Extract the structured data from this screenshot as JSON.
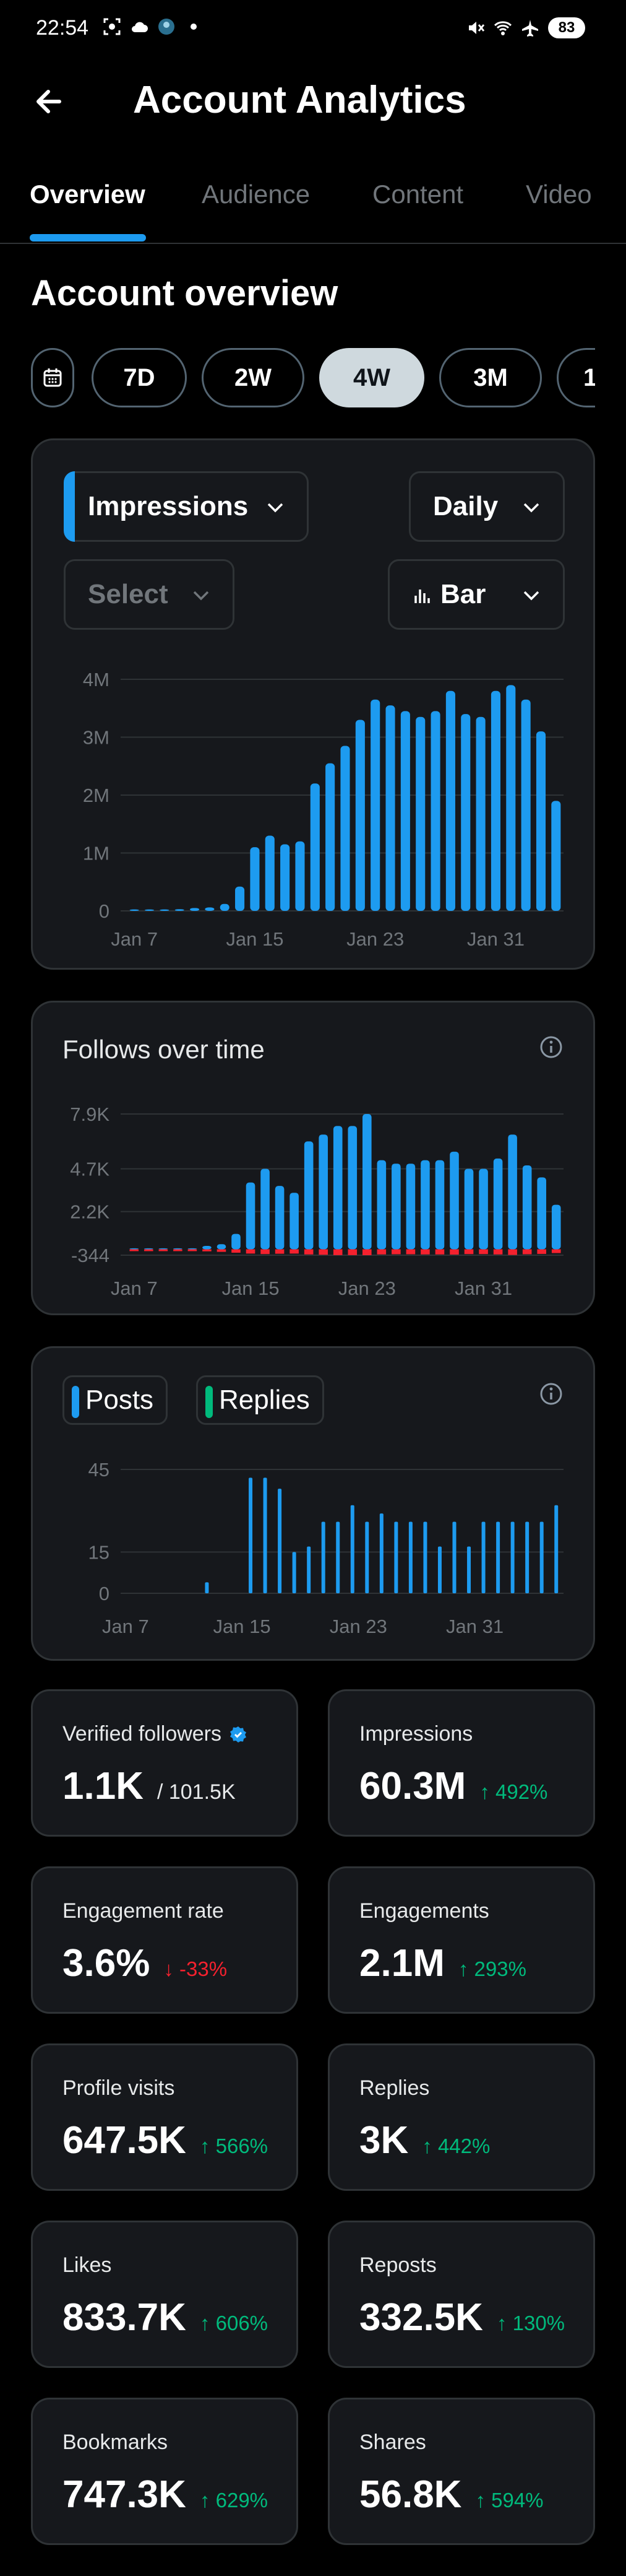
{
  "status_bar": {
    "time": "22:54",
    "battery": "83"
  },
  "header": {
    "title": "Account Analytics"
  },
  "tabs": [
    {
      "label": "Overview",
      "active": true
    },
    {
      "label": "Audience",
      "active": false
    },
    {
      "label": "Content",
      "active": false
    },
    {
      "label": "Video",
      "active": false
    }
  ],
  "overview": {
    "title": "Account overview",
    "ranges": [
      "7D",
      "2W",
      "4W",
      "3M",
      "1"
    ],
    "active_range": "4W"
  },
  "impressions_card": {
    "metric": "Impressions",
    "granularity": "Daily",
    "compare": "Select",
    "chart_type": "Bar"
  },
  "follows_card": {
    "title": "Follows over time"
  },
  "posts_card": {
    "legend": [
      "Posts",
      "Replies"
    ]
  },
  "chart_data": [
    {
      "type": "bar",
      "x_labels": [
        "Jan 7",
        "Jan 15",
        "Jan 23",
        "Jan 31"
      ],
      "y_ticks": [
        "0",
        "1M",
        "2M",
        "3M",
        "4M"
      ],
      "ylim": [
        0,
        4000000
      ],
      "series": [
        {
          "name": "Impressions",
          "values": [
            20000,
            20000,
            20000,
            30000,
            50000,
            60000,
            120000,
            420000,
            1100000,
            1300000,
            1150000,
            1200000,
            2200000,
            2550000,
            2850000,
            3300000,
            3650000,
            3550000,
            3450000,
            3350000,
            3450000,
            3800000,
            3400000,
            3350000,
            3800000,
            3900000,
            3650000,
            3100000,
            1900000
          ]
        }
      ]
    },
    {
      "type": "bar",
      "title": "Follows over time",
      "x_labels": [
        "Jan 7",
        "Jan 15",
        "Jan 23",
        "Jan 31"
      ],
      "y_ticks": [
        "-344",
        "2.2K",
        "4.7K",
        "7.9K"
      ],
      "ylim": [
        -344,
        7900
      ],
      "series": [
        {
          "name": "Gained",
          "values": [
            20,
            20,
            20,
            30,
            50,
            200,
            300,
            900,
            3900,
            4700,
            3700,
            3300,
            6300,
            6700,
            7200,
            7200,
            7900,
            5200,
            5000,
            5000,
            5200,
            5200,
            5700,
            4700,
            4700,
            5300,
            6700,
            4900,
            4200,
            2600
          ]
        },
        {
          "name": "Lost",
          "values": [
            -100,
            -100,
            -100,
            -100,
            -100,
            -120,
            -150,
            -200,
            -250,
            -280,
            -260,
            -250,
            -300,
            -320,
            -340,
            -340,
            -344,
            -300,
            -290,
            -290,
            -300,
            -300,
            -310,
            -280,
            -280,
            -300,
            -330,
            -290,
            -270,
            -220
          ]
        }
      ]
    },
    {
      "type": "bar",
      "x_labels": [
        "Jan 7",
        "Jan 15",
        "Jan 23",
        "Jan 31"
      ],
      "y_ticks": [
        "0",
        "15",
        "45"
      ],
      "ylim": [
        0,
        45
      ],
      "series": [
        {
          "name": "Posts",
          "values": [
            0,
            0,
            0,
            0,
            0,
            4,
            0,
            0,
            42,
            42,
            38,
            15,
            17,
            26,
            26,
            32,
            26,
            29,
            26,
            26,
            26,
            17,
            26,
            17,
            26,
            26,
            26,
            26,
            26,
            32
          ]
        },
        {
          "name": "Replies",
          "values": []
        }
      ]
    }
  ],
  "stats": [
    {
      "label": "Verified followers",
      "value": "1.1K",
      "sub": "/ 101.5K",
      "verified": true
    },
    {
      "label": "Impressions",
      "value": "60.3M",
      "delta": "492%",
      "dir": "up"
    },
    {
      "label": "Engagement rate",
      "value": "3.6%",
      "delta": "-33%",
      "dir": "down"
    },
    {
      "label": "Engagements",
      "value": "2.1M",
      "delta": "293%",
      "dir": "up"
    },
    {
      "label": "Profile visits",
      "value": "647.5K",
      "delta": "566%",
      "dir": "up"
    },
    {
      "label": "Replies",
      "value": "3K",
      "delta": "442%",
      "dir": "up"
    },
    {
      "label": "Likes",
      "value": "833.7K",
      "delta": "606%",
      "dir": "up"
    },
    {
      "label": "Reposts",
      "value": "332.5K",
      "delta": "130%",
      "dir": "up"
    },
    {
      "label": "Bookmarks",
      "value": "747.3K",
      "delta": "629%",
      "dir": "up"
    },
    {
      "label": "Shares",
      "value": "56.8K",
      "delta": "594%",
      "dir": "up"
    }
  ],
  "colors": {
    "accent": "#1d9bf0",
    "positive": "#00ba7c",
    "negative": "#f4212e",
    "replies": "#00ba7c"
  }
}
